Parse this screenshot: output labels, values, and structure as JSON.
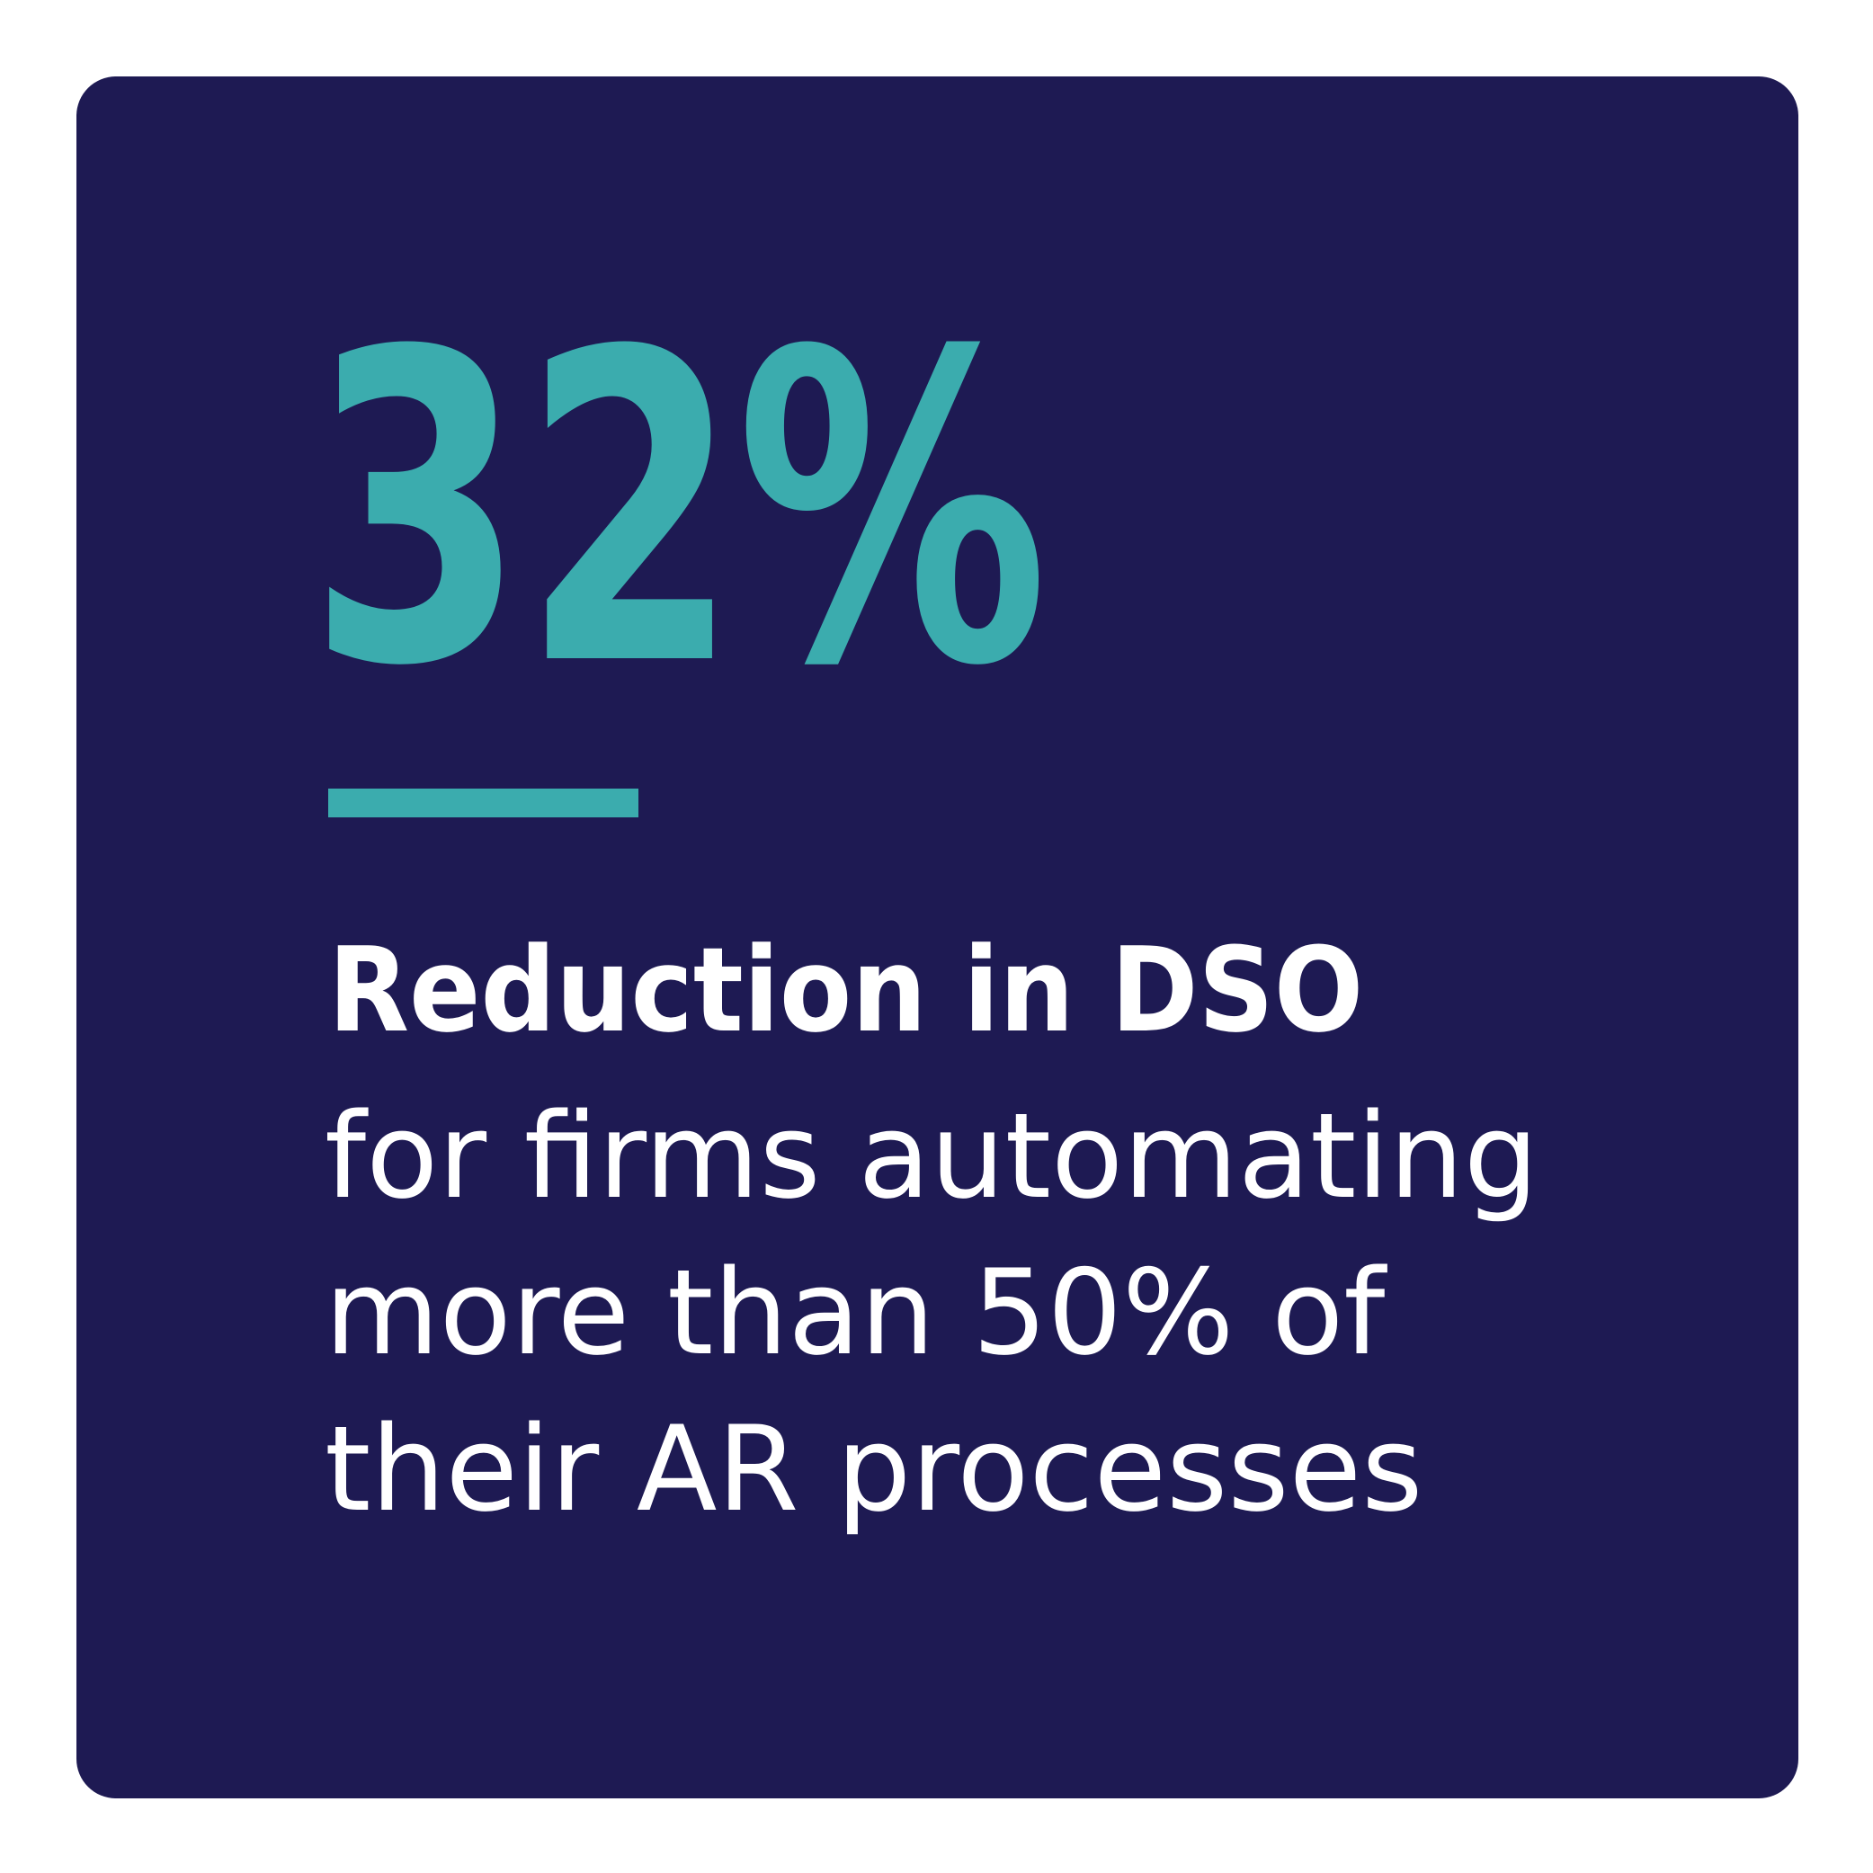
{
  "colors": {
    "page_bg": "#ffffff",
    "card_bg": "#1E1A53",
    "accent": "#3BACAE",
    "text": "#ffffff"
  },
  "card": {
    "value": "32%",
    "heading": "Reduction in DSO",
    "description_lines": [
      "for firms automating",
      "more than 50% of",
      "their AR processes"
    ]
  }
}
